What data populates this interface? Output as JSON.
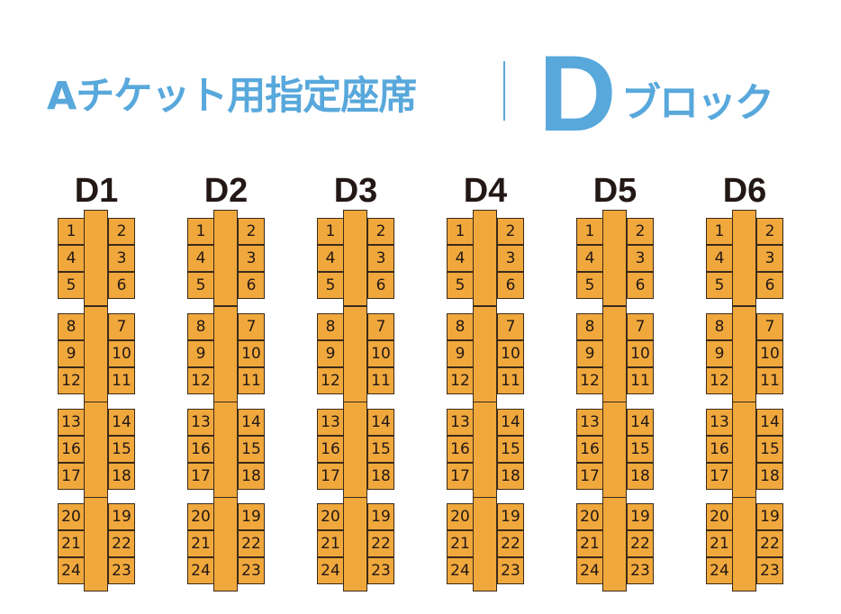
{
  "header": {
    "title": "Aチケット用指定座席",
    "block_letter": "D",
    "block_word": "ブロック",
    "accent_color": "#58a8dc"
  },
  "seat_color": "#f0a83c",
  "blocks": [
    {
      "name": "D1"
    },
    {
      "name": "D2"
    },
    {
      "name": "D3"
    },
    {
      "name": "D4"
    },
    {
      "name": "D5"
    },
    {
      "name": "D6"
    }
  ],
  "table_groups": [
    [
      [
        "1",
        "2"
      ],
      [
        "4",
        "3"
      ],
      [
        "5",
        "6"
      ]
    ],
    [
      [
        "8",
        "7"
      ],
      [
        "9",
        "10"
      ],
      [
        "12",
        "11"
      ]
    ],
    [
      [
        "13",
        "14"
      ],
      [
        "16",
        "15"
      ],
      [
        "17",
        "18"
      ]
    ],
    [
      [
        "20",
        "19"
      ],
      [
        "21",
        "22"
      ],
      [
        "24",
        "23"
      ]
    ]
  ]
}
